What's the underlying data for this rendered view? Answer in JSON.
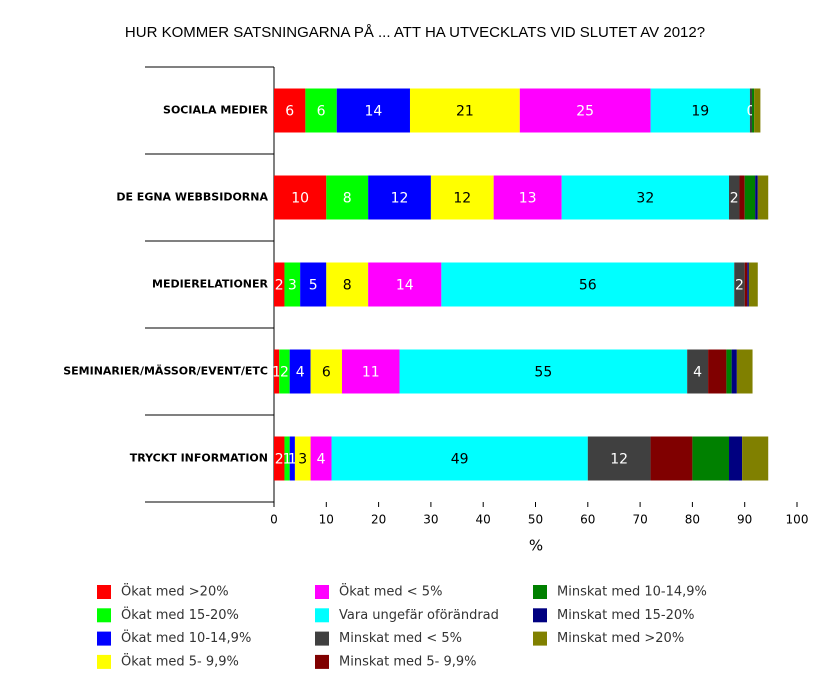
{
  "chart_data": {
    "type": "stacked-bar-horizontal",
    "title": "HUR KOMMER SATSNINGARNA PÅ  ... ATT HA UTVECKLATS VID SLUTET AV 2012?",
    "x_label": "%",
    "categories": [
      "SOCIALA MEDIER",
      "DE EGNA WEBBSIDORNA",
      "MEDIERELATIONER",
      "SEMINARIER/MÄSSOR/EVENT/ETC",
      "TRYCKT INFORMATION"
    ],
    "xlim": [
      0,
      100
    ],
    "xticks": [
      0,
      10,
      20,
      30,
      40,
      50,
      60,
      70,
      80,
      90,
      100
    ],
    "series": [
      {
        "name": "Ökat med >20%",
        "color": "#ff0000",
        "values": [
          6,
          10,
          2,
          1,
          2
        ],
        "value_labels": [
          "6",
          "10",
          "2",
          "1",
          "2"
        ]
      },
      {
        "name": "Ökat med 15-20%",
        "color": "#00ff00",
        "values": [
          6,
          8,
          3,
          2,
          1
        ],
        "value_labels": [
          "6",
          "8",
          "3",
          "2",
          "1"
        ]
      },
      {
        "name": "Ökat med 10-14,9%",
        "color": "#0000ff",
        "values": [
          14,
          12,
          5,
          4,
          1
        ],
        "value_labels": [
          "14",
          "12",
          "5",
          "4",
          "1"
        ]
      },
      {
        "name": "Ökat med 5- 9,9%",
        "color": "#ffff00",
        "values": [
          21,
          12,
          8,
          6,
          3
        ],
        "value_labels": [
          "21",
          "12",
          "8",
          "6",
          "3"
        ]
      },
      {
        "name": "Ökat med < 5%",
        "color": "#ff00ff",
        "values": [
          25,
          13,
          14,
          11,
          4
        ],
        "value_labels": [
          "25",
          "13",
          "14",
          "11",
          "4"
        ]
      },
      {
        "name": "Vara ungefär oförändrad",
        "color": "#00ffff",
        "values": [
          19,
          32,
          56,
          55,
          49
        ],
        "value_labels": [
          "19",
          "32",
          "56",
          "55",
          "49"
        ]
      },
      {
        "name": "Minskat med < 5%",
        "color": "#404040",
        "values": [
          0.4,
          2,
          2,
          4,
          12
        ],
        "value_labels": [
          "0",
          "2",
          "2",
          "4",
          "12"
        ]
      },
      {
        "name": "Minskat med 5- 9,9%",
        "color": "#800000",
        "values": [
          0,
          1,
          0.5,
          3.5,
          8
        ],
        "value_labels": [
          null,
          null,
          null,
          null,
          null
        ]
      },
      {
        "name": "Minskat med 10-14,9%",
        "color": "#008000",
        "values": [
          0.4,
          2,
          0,
          1,
          7
        ],
        "value_labels": [
          null,
          null,
          null,
          null,
          null
        ]
      },
      {
        "name": "Minskat med 15-20%",
        "color": "#000080",
        "values": [
          0,
          0.5,
          0.3,
          1,
          2.5
        ],
        "value_labels": [
          null,
          null,
          null,
          null,
          null
        ]
      },
      {
        "name": "Minskat med >20%",
        "color": "#808000",
        "values": [
          1.2,
          2,
          1.7,
          3,
          5
        ],
        "value_labels": [
          null,
          null,
          null,
          null,
          null
        ]
      }
    ]
  }
}
